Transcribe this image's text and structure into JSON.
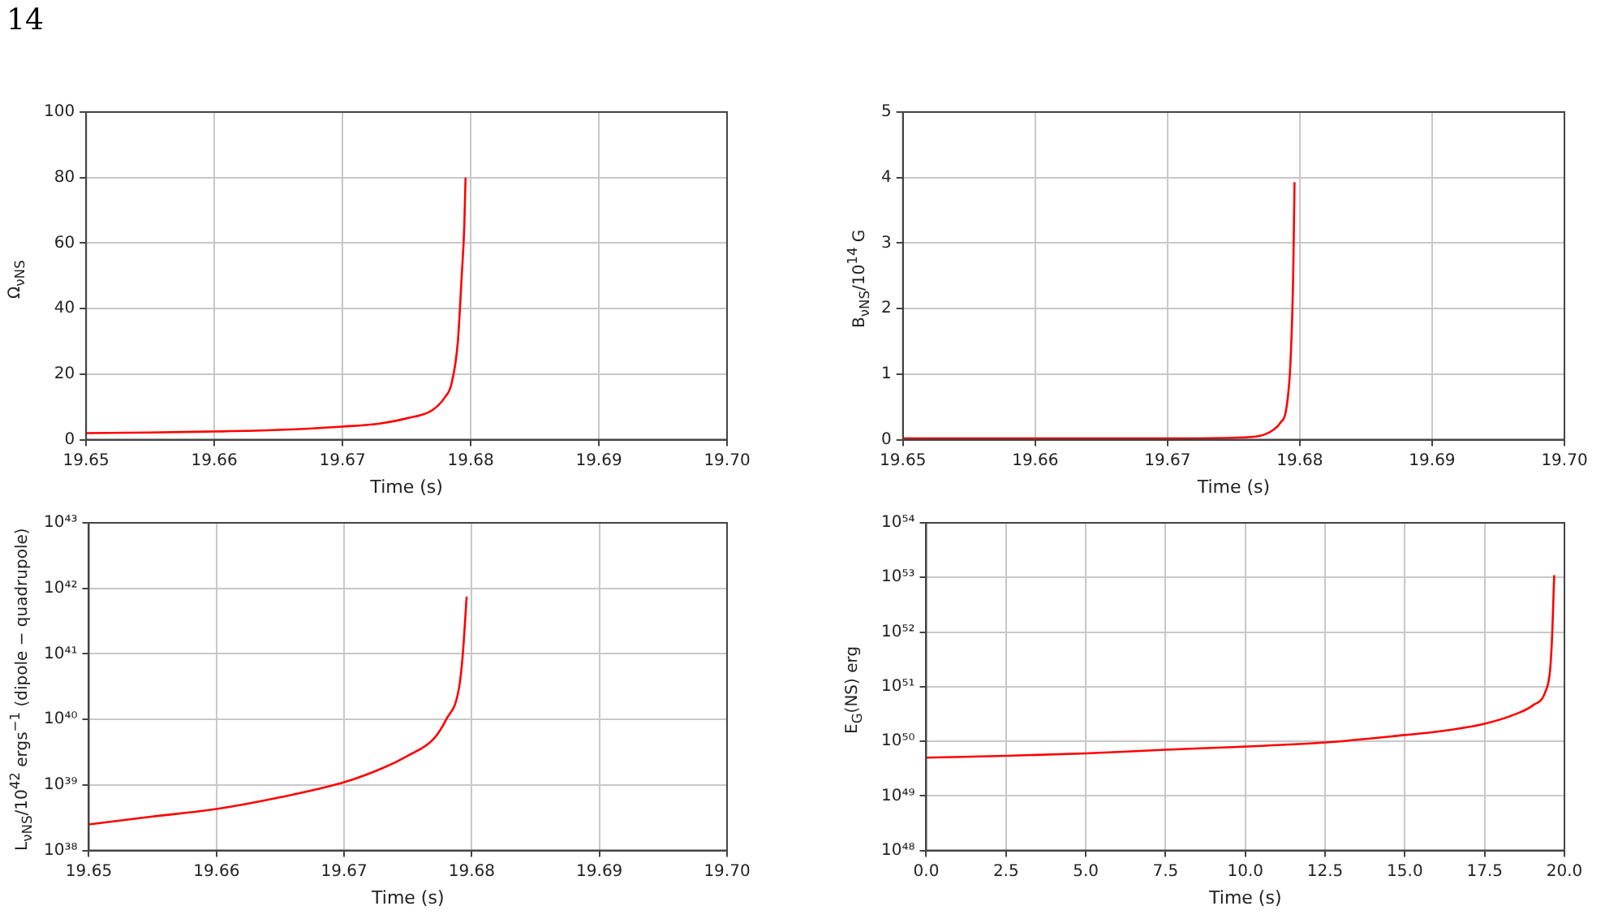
{
  "chart_data": [
    {
      "type": "line",
      "xlabel": "Time (s)",
      "ylabel": "Ω$_{νNS}$",
      "annotations": [
        "14"
      ],
      "x": [
        19.65,
        19.655,
        19.66,
        19.665,
        19.67,
        19.673,
        19.675,
        19.677,
        19.678,
        19.6785,
        19.679,
        19.6793,
        19.6795,
        19.6796
      ],
      "series": [
        {
          "color": "#ff0000",
          "values": [
            2,
            2.2,
            2.5,
            3,
            4,
            5,
            6.5,
            9,
            13,
            17,
            30,
            50,
            65,
            80
          ]
        }
      ],
      "xlim": [
        19.65,
        19.7
      ],
      "xticks": [
        19.65,
        19.66,
        19.67,
        19.68,
        19.69,
        {
          "value": 19.7,
          "label": "19.70"
        }
      ],
      "ylim": [
        0,
        100
      ],
      "yticks": [
        0,
        20,
        40,
        60,
        80,
        100
      ],
      "grid": true,
      "legend": false
    },
    {
      "type": "line",
      "xlabel": "Time (s)",
      "ylabel": "B$_{νNS}$/10$^{14}$ G",
      "x": [
        19.65,
        19.66,
        19.67,
        19.675,
        19.677,
        19.678,
        19.6785,
        19.679,
        19.6793,
        19.6795,
        19.6796
      ],
      "series": [
        {
          "color": "#ff0000",
          "values": [
            0.02,
            0.02,
            0.02,
            0.03,
            0.06,
            0.15,
            0.25,
            0.5,
            1.2,
            2.5,
            3.93
          ]
        }
      ],
      "xlim": [
        19.65,
        19.7
      ],
      "xticks": [
        19.65,
        19.66,
        19.67,
        19.68,
        19.69,
        {
          "value": 19.7,
          "label": "19.70"
        }
      ],
      "ylim": [
        0,
        5
      ],
      "yticks": [
        0,
        1,
        2,
        3,
        4,
        5
      ],
      "grid": true,
      "legend": false
    },
    {
      "type": "line",
      "xlabel": "Time (s)",
      "ylabel": "L$_{νNS}$/10$^{42}$ ergs$^{−1}$ (dipole − quadrupole)",
      "log": "y",
      "x": [
        19.65,
        19.655,
        19.66,
        19.665,
        19.67,
        19.673,
        19.675,
        19.677,
        19.678,
        19.679,
        19.6793,
        19.6796
      ],
      "series": [
        {
          "color": "#ff0000",
          "values": [
            2.5e+38,
            3.3e+38,
            4.3e+38,
            6.5e+38,
            1.1e+39,
            1.8e+39,
            2.8e+39,
            5e+39,
            1e+40,
            3e+40,
            1e+41,
            7.5e+41
          ]
        }
      ],
      "xlim": [
        19.65,
        19.7
      ],
      "xticks": [
        19.65,
        19.66,
        19.67,
        19.68,
        19.69,
        {
          "value": 19.7,
          "label": "19.70"
        }
      ],
      "ylim": [
        1e+38,
        1e+43
      ],
      "yticks": [
        {
          "value": 1e+38,
          "label": "10³⁸"
        },
        {
          "value": 1e+39,
          "label": "10³⁹"
        },
        {
          "value": 1e+40,
          "label": "10⁴⁰"
        },
        {
          "value": 1e+41,
          "label": "10⁴¹"
        },
        {
          "value": 1e+42,
          "label": "10⁴²"
        },
        {
          "value": 1e+43,
          "label": "10⁴³"
        }
      ],
      "grid": true,
      "legend": false
    },
    {
      "type": "line",
      "xlabel": "Time (s)",
      "ylabel": "E$_{G}$(NS) erg",
      "log": "y",
      "x": [
        0,
        2.5,
        5,
        7.5,
        10,
        12.5,
        15,
        16,
        17.5,
        18.5,
        19,
        19.4,
        19.55,
        19.62,
        19.66,
        19.68
      ],
      "series": [
        {
          "color": "#ff0000",
          "values": [
            5e+49,
            5.4e+49,
            6e+49,
            7e+49,
            8e+49,
            9.5e+49,
            1.3e+50,
            1.5e+50,
            2.1e+50,
            3.2e+50,
            4.5e+50,
            8e+50,
            2e+51,
            1e+52,
            5e+52,
            1.1e+53
          ]
        }
      ],
      "xlim": [
        0,
        20
      ],
      "xticks": [
        {
          "value": 0,
          "label": "0.0"
        },
        2.5,
        {
          "value": 5,
          "label": "5.0"
        },
        7.5,
        {
          "value": 10,
          "label": "10.0"
        },
        12.5,
        {
          "value": 15,
          "label": "15.0"
        },
        17.5,
        {
          "value": 20,
          "label": "20.0"
        }
      ],
      "ylim": [
        1e+48,
        1e+54
      ],
      "yticks": [
        {
          "value": 1e+48,
          "label": "10⁴⁸"
        },
        {
          "value": 1e+49,
          "label": "10⁴⁹"
        },
        {
          "value": 1e+50,
          "label": "10⁵⁰"
        },
        {
          "value": 1e+51,
          "label": "10⁵¹"
        },
        {
          "value": 1e+52,
          "label": "10⁵²"
        },
        {
          "value": 1e+53,
          "label": "10⁵³"
        },
        {
          "value": 1e+54,
          "label": "10⁵⁴"
        }
      ],
      "grid": true,
      "legend": false
    }
  ]
}
